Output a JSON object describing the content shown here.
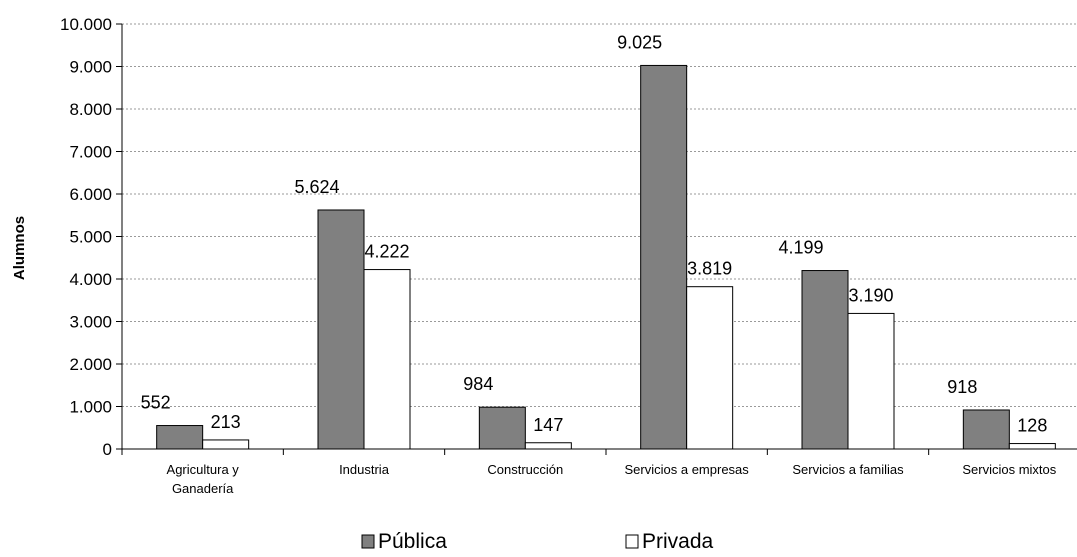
{
  "chart_data": {
    "type": "bar",
    "title": "",
    "xlabel": "",
    "ylabel": "Alumnos",
    "ylim": [
      0,
      10000
    ],
    "y_ticks": [
      0,
      1000,
      2000,
      3000,
      4000,
      5000,
      6000,
      7000,
      8000,
      9000,
      10000
    ],
    "y_tick_labels": [
      "0",
      "1.000",
      "2.000",
      "3.000",
      "4.000",
      "5.000",
      "6.000",
      "7.000",
      "8.000",
      "9.000",
      "10.000"
    ],
    "grid": true,
    "legend_position": "bottom",
    "categories": [
      [
        "Agricultura y",
        "Ganadería"
      ],
      [
        "Industria"
      ],
      [
        "Construcción"
      ],
      [
        "Servicios a empresas"
      ],
      [
        "Servicios a familias"
      ],
      [
        "Servicios mixtos"
      ]
    ],
    "series": [
      {
        "name": "Pública",
        "color": "#808080",
        "values": [
          552,
          5624,
          984,
          9025,
          4199,
          918
        ],
        "labels": [
          "552",
          "5.624",
          "984",
          "9.025",
          "4.199",
          "918"
        ]
      },
      {
        "name": "Privada",
        "color": "#ffffff",
        "values": [
          213,
          4222,
          147,
          3819,
          3190,
          128
        ],
        "labels": [
          "213",
          "4.222",
          "147",
          "3.819",
          "3.190",
          "128"
        ]
      }
    ]
  }
}
